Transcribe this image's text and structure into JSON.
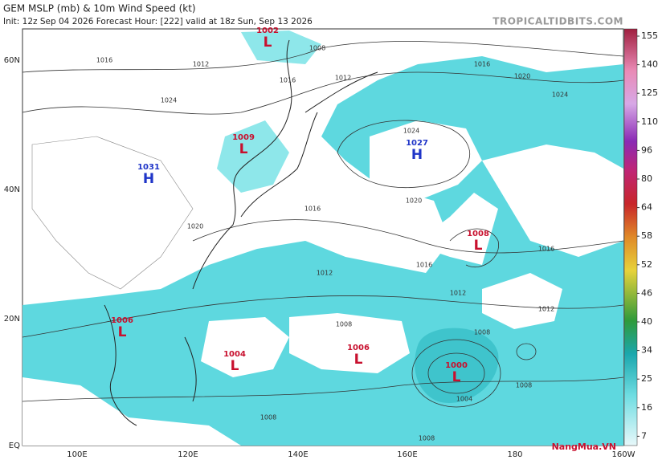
{
  "header": {
    "title": "GEM MSLP (mb) & 10m Wind Speed (kt)",
    "info": "Init: 12z Sep 04 2026   Forecast Hour: [222]   valid at 18z Sun, Sep 13 2026",
    "source": "TROPICALTIDBITS.COM"
  },
  "latitudes": [
    "60N",
    "40N",
    "20N",
    "EQ"
  ],
  "longitudes": [
    "100E",
    "120E",
    "140E",
    "160E",
    "180",
    "160W"
  ],
  "colorbar": [
    155,
    140,
    125,
    110,
    96,
    80,
    64,
    58,
    52,
    46,
    40,
    34,
    25,
    16,
    7
  ],
  "centers": [
    {
      "pressure": "1002",
      "symbol": "L"
    },
    {
      "pressure": "1009",
      "symbol": "L"
    },
    {
      "pressure": "1031",
      "symbol": "H"
    },
    {
      "pressure": "1027",
      "symbol": "H"
    },
    {
      "pressure": "1008",
      "symbol": "L"
    },
    {
      "pressure": "1006",
      "symbol": "L"
    },
    {
      "pressure": "1004",
      "symbol": "L"
    },
    {
      "pressure": "1006",
      "symbol": "L"
    },
    {
      "pressure": "1000",
      "symbol": "L"
    }
  ],
  "isobar_labels": [
    "1016",
    "1012",
    "1024",
    "1016",
    "1008",
    "1012",
    "1020",
    "1024",
    "1016",
    "1024",
    "1020",
    "1016",
    "1012",
    "1016",
    "1012",
    "1016",
    "1012",
    "1008",
    "1008",
    "1008",
    "1004",
    "1008",
    "1008",
    "1020"
  ],
  "watermark": "NangMua.VN"
}
